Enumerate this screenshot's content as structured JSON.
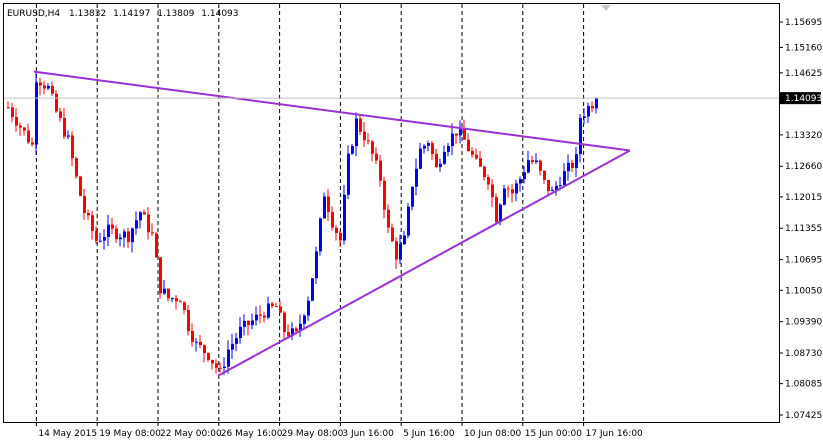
{
  "header": {
    "symbol": "EURUSD,H4",
    "open": "1.13832",
    "high": "1.14197",
    "low": "1.13809",
    "close": "1.14093"
  },
  "colors": {
    "bull": "#0000ff",
    "bear": "#ff0000",
    "trendline": "#9b30d9",
    "grid": "#000000",
    "price_line": "#c0c0c0",
    "price_tag_bg": "#000000",
    "price_tag_text": "#ffffff"
  },
  "chart_data": {
    "type": "candlestick",
    "title": "EURUSD,H4",
    "current_price": 1.14093,
    "y_ticks": [
      "1.15695",
      "1.15160",
      "1.14625",
      "1.14093",
      "1.13320",
      "1.12660",
      "1.12015",
      "1.11355",
      "1.10695",
      "1.10050",
      "1.09390",
      "1.08730",
      "1.08085",
      "1.07425"
    ],
    "ylim": [
      1.07425,
      1.15695
    ],
    "x_ticks": [
      "14 May 2015",
      "19 May 08:00",
      "22 May 00:00",
      "26 May 16:00",
      "29 May 08:00",
      "3 Jun 16:00",
      "5 Jun 16:00",
      "10 Jun 08:00",
      "15 Jun 00:00",
      "17 Jun 16:00"
    ],
    "xlim": [
      0,
      152
    ],
    "grid": "vertical dashed",
    "trendlines": [
      {
        "name": "",
        "points": [
          [
            7,
            1.1465
          ],
          [
            156,
            1.1299
          ]
        ]
      },
      {
        "name": "",
        "points": [
          [
            53,
            1.0825
          ],
          [
            156,
            1.1299
          ]
        ]
      }
    ],
    "key_levels": [
      {
        "x": 0,
        "y": 1.139
      },
      {
        "x": 6,
        "y": 1.131
      },
      {
        "x": 7,
        "y": 1.1455
      },
      {
        "x": 10,
        "y": 1.143
      },
      {
        "x": 12,
        "y": 1.138
      },
      {
        "x": 15,
        "y": 1.132
      },
      {
        "x": 17,
        "y": 1.124
      },
      {
        "x": 19,
        "y": 1.117
      },
      {
        "x": 22,
        "y": 1.111
      },
      {
        "x": 25,
        "y": 1.113
      },
      {
        "x": 30,
        "y": 1.112
      },
      {
        "x": 33,
        "y": 1.117
      },
      {
        "x": 36,
        "y": 1.112
      },
      {
        "x": 38,
        "y": 1.101
      },
      {
        "x": 40,
        "y": 1.0988
      },
      {
        "x": 43,
        "y": 1.099
      },
      {
        "x": 45,
        "y": 1.093
      },
      {
        "x": 47,
        "y": 1.089
      },
      {
        "x": 50,
        "y": 1.087
      },
      {
        "x": 53,
        "y": 1.083
      },
      {
        "x": 55,
        "y": 1.088
      },
      {
        "x": 58,
        "y": 1.092
      },
      {
        "x": 61,
        "y": 1.094
      },
      {
        "x": 64,
        "y": 1.096
      },
      {
        "x": 67,
        "y": 1.097
      },
      {
        "x": 69,
        "y": 1.092
      },
      {
        "x": 72,
        "y": 1.091
      },
      {
        "x": 75,
        "y": 1.099
      },
      {
        "x": 77,
        "y": 1.108
      },
      {
        "x": 79,
        "y": 1.121
      },
      {
        "x": 81,
        "y": 1.115
      },
      {
        "x": 83,
        "y": 1.111
      },
      {
        "x": 85,
        "y": 1.128
      },
      {
        "x": 87,
        "y": 1.136
      },
      {
        "x": 89,
        "y": 1.133
      },
      {
        "x": 91,
        "y": 1.129
      },
      {
        "x": 93,
        "y": 1.124
      },
      {
        "x": 95,
        "y": 1.113
      },
      {
        "x": 97,
        "y": 1.108
      },
      {
        "x": 99,
        "y": 1.111
      },
      {
        "x": 101,
        "y": 1.123
      },
      {
        "x": 103,
        "y": 1.13
      },
      {
        "x": 105,
        "y": 1.132
      },
      {
        "x": 107,
        "y": 1.126
      },
      {
        "x": 109,
        "y": 1.131
      },
      {
        "x": 112,
        "y": 1.134
      },
      {
        "x": 114,
        "y": 1.132
      },
      {
        "x": 117,
        "y": 1.127
      },
      {
        "x": 120,
        "y": 1.124
      },
      {
        "x": 122,
        "y": 1.116
      },
      {
        "x": 124,
        "y": 1.123
      },
      {
        "x": 126,
        "y": 1.121
      },
      {
        "x": 128,
        "y": 1.124
      },
      {
        "x": 130,
        "y": 1.128
      },
      {
        "x": 132,
        "y": 1.127
      },
      {
        "x": 134,
        "y": 1.123
      },
      {
        "x": 136,
        "y": 1.121
      },
      {
        "x": 138,
        "y": 1.124
      },
      {
        "x": 140,
        "y": 1.126
      },
      {
        "x": 142,
        "y": 1.128
      },
      {
        "x": 143,
        "y": 1.137
      },
      {
        "x": 145,
        "y": 1.139
      },
      {
        "x": 147,
        "y": 1.1409
      }
    ]
  }
}
